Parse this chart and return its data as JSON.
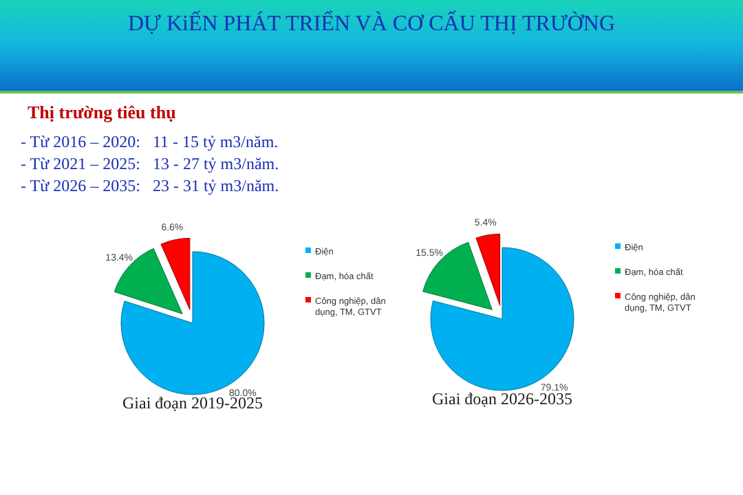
{
  "chart_data": [
    {
      "type": "other",
      "title": "DỰ KiẾN PHÁT TRIỂN VÀ CƠ CẤU THỊ TRƯỜNG",
      "subtitle": "Thị trường tiêu thụ",
      "annotations": [
        "- Từ 2016 – 2020:   11 - 15 tỷ m3/năm.",
        "- Từ 2021 – 2025:   13 - 27 tỷ m3/năm.",
        "- Từ 2026 – 2035:   23 - 31 tỷ m3/năm."
      ]
    },
    {
      "type": "pie",
      "title": "Giai đoạn 2019-2025",
      "categories": [
        "Điện",
        "Đạm, hóa chất",
        "Công nghiệp, dân dụng, TM, GTVT"
      ],
      "values": [
        80.0,
        13.4,
        6.6
      ],
      "value_labels": [
        "80.0%",
        "13.4%",
        "6.6%"
      ],
      "colors": [
        "#00b0f0",
        "#00b050",
        "#ff0000"
      ],
      "legend": "right"
    },
    {
      "type": "pie",
      "title": "Giai đoạn 2026-2035",
      "categories": [
        "Điện",
        "Đạm, hóa chất",
        "Công nghiệp, dân dụng, TM, GTVT"
      ],
      "values": [
        79.1,
        15.5,
        5.4
      ],
      "value_labels": [
        "79.1%",
        "15.5%",
        "5.4%"
      ],
      "colors": [
        "#00b0f0",
        "#00b050",
        "#ff0000"
      ],
      "legend": "right"
    }
  ]
}
